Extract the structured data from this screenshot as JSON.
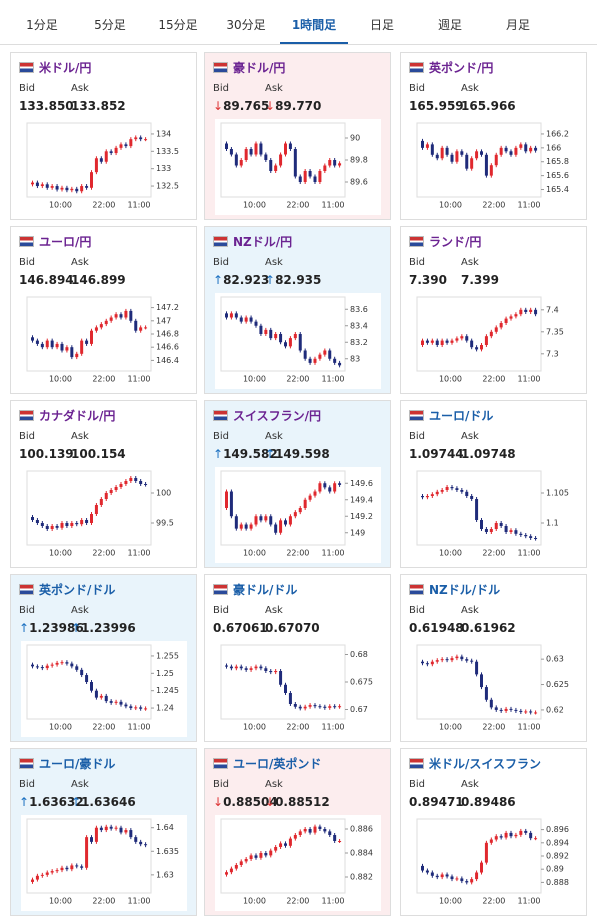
{
  "tabs": {
    "items": [
      "1分足",
      "5分足",
      "15分足",
      "30分足",
      "1時間足",
      "日足",
      "週足",
      "月足"
    ],
    "active": 4
  },
  "labels": {
    "bid": "Bid",
    "ask": "Ask"
  },
  "x_axis": [
    "10:00",
    "22:00",
    "11:00"
  ],
  "cards": [
    {
      "title": "米ドル/円",
      "title_color": "#6b2391",
      "dir": null,
      "bid": "133.850",
      "ask": "133.852",
      "ylim": [
        132.3,
        134.2
      ],
      "yticks": [
        132.5,
        133,
        133.5,
        134
      ],
      "closes": [
        132.55,
        132.6,
        132.5,
        132.55,
        132.45,
        132.5,
        132.4,
        132.45,
        132.38,
        132.42,
        132.35,
        132.5,
        132.45,
        132.9,
        133.3,
        133.2,
        133.5,
        133.45,
        133.6,
        133.7,
        133.65,
        133.85,
        133.9,
        133.85,
        133.85
      ]
    },
    {
      "title": "豪ドル/円",
      "title_color": "#6b2391",
      "dir": "down",
      "bid": "89.765",
      "ask": "89.770",
      "ylim": [
        89.5,
        90.1
      ],
      "yticks": [
        89.6,
        89.8,
        90
      ],
      "closes": [
        89.95,
        89.9,
        89.85,
        89.75,
        89.8,
        89.9,
        89.85,
        89.95,
        89.85,
        89.8,
        89.7,
        89.75,
        89.85,
        89.95,
        89.9,
        89.65,
        89.6,
        89.7,
        89.65,
        89.6,
        89.7,
        89.75,
        89.8,
        89.75,
        89.77
      ]
    },
    {
      "title": "英ポンド/円",
      "title_color": "#6b2391",
      "dir": null,
      "bid": "165.959",
      "ask": "165.966",
      "ylim": [
        165.35,
        166.3
      ],
      "yticks": [
        165.4,
        165.6,
        165.8,
        166,
        166.2
      ],
      "closes": [
        166.1,
        166.0,
        166.05,
        165.9,
        165.85,
        166.0,
        165.9,
        165.8,
        165.95,
        165.9,
        165.7,
        165.85,
        165.95,
        165.9,
        165.6,
        165.75,
        165.9,
        166.0,
        165.95,
        165.9,
        166.0,
        166.05,
        165.95,
        166.0,
        165.96
      ]
    },
    {
      "title": "ユーロ/円",
      "title_color": "#6b2391",
      "dir": null,
      "bid": "146.894",
      "ask": "146.899",
      "ylim": [
        146.3,
        147.3
      ],
      "yticks": [
        146.4,
        146.6,
        146.8,
        147,
        147.2
      ],
      "closes": [
        146.75,
        146.7,
        146.65,
        146.6,
        146.7,
        146.6,
        146.65,
        146.55,
        146.6,
        146.45,
        146.5,
        146.7,
        146.65,
        146.85,
        146.9,
        146.95,
        147.0,
        147.05,
        147.1,
        147.05,
        147.15,
        147.0,
        146.85,
        146.9,
        146.9
      ]
    },
    {
      "title": "NZドル/円",
      "title_color": "#6b2391",
      "dir": "up",
      "bid": "82.923",
      "ask": "82.935",
      "ylim": [
        82.9,
        83.7
      ],
      "yticks": [
        83,
        83.2,
        83.4,
        83.6
      ],
      "closes": [
        83.55,
        83.5,
        83.55,
        83.5,
        83.45,
        83.5,
        83.45,
        83.4,
        83.3,
        83.35,
        83.25,
        83.3,
        83.2,
        83.15,
        83.25,
        83.3,
        83.1,
        83.0,
        82.95,
        83.0,
        83.05,
        83.1,
        83.0,
        82.95,
        82.92
      ]
    },
    {
      "title": "ランド/円",
      "title_color": "#6b2391",
      "dir": null,
      "bid": "7.390",
      "ask": "7.399",
      "ylim": [
        7.27,
        7.42
      ],
      "yticks": [
        7.3,
        7.35,
        7.4
      ],
      "closes": [
        7.32,
        7.33,
        7.325,
        7.33,
        7.32,
        7.33,
        7.325,
        7.33,
        7.335,
        7.34,
        7.33,
        7.315,
        7.31,
        7.32,
        7.34,
        7.35,
        7.36,
        7.37,
        7.38,
        7.385,
        7.39,
        7.4,
        7.395,
        7.4,
        7.39
      ]
    },
    {
      "title": "カナダドル/円",
      "title_color": "#6b2391",
      "dir": null,
      "bid": "100.139",
      "ask": "100.154",
      "ylim": [
        99.2,
        100.3
      ],
      "yticks": [
        99.5,
        100
      ],
      "closes": [
        99.6,
        99.55,
        99.5,
        99.45,
        99.4,
        99.45,
        99.42,
        99.5,
        99.45,
        99.5,
        99.48,
        99.55,
        99.5,
        99.65,
        99.8,
        99.9,
        100.0,
        100.05,
        100.1,
        100.15,
        100.2,
        100.25,
        100.2,
        100.15,
        100.14
      ]
    },
    {
      "title": "スイスフラン/円",
      "title_color": "#6b2391",
      "dir": "up",
      "bid": "149.582",
      "ask": "149.598",
      "ylim": [
        148.9,
        149.7
      ],
      "yticks": [
        149,
        149.2,
        149.4,
        149.6
      ],
      "closes": [
        149.3,
        149.5,
        149.2,
        149.05,
        149.1,
        149.05,
        149.1,
        149.2,
        149.15,
        149.2,
        149.1,
        149.0,
        149.15,
        149.1,
        149.2,
        149.25,
        149.3,
        149.4,
        149.45,
        149.5,
        149.6,
        149.55,
        149.5,
        149.6,
        149.58
      ]
    },
    {
      "title": "ユーロ/ドル",
      "title_color": "#1a5ea8",
      "dir": null,
      "bid": "1.09744",
      "ask": "1.09748",
      "ylim": [
        1.097,
        1.108
      ],
      "yticks": [
        1.1,
        1.105
      ],
      "closes": [
        1.1045,
        1.1043,
        1.1045,
        1.1048,
        1.1052,
        1.1055,
        1.106,
        1.1058,
        1.1055,
        1.1052,
        1.1045,
        1.104,
        1.1005,
        1.099,
        1.0985,
        1.099,
        1.1,
        1.0995,
        1.0985,
        1.0988,
        1.0982,
        1.098,
        1.0978,
        1.0975,
        1.0974
      ]
    },
    {
      "title": "英ポンド/ドル",
      "title_color": "#1a5ea8",
      "dir": "up",
      "bid": "1.23986",
      "ask": "1.23996",
      "ylim": [
        1.238,
        1.257
      ],
      "yticks": [
        1.24,
        1.245,
        1.25,
        1.255
      ],
      "closes": [
        1.2525,
        1.252,
        1.2518,
        1.2515,
        1.2522,
        1.2525,
        1.253,
        1.2532,
        1.2528,
        1.252,
        1.251,
        1.2495,
        1.2475,
        1.245,
        1.243,
        1.2435,
        1.242,
        1.2415,
        1.2418,
        1.241,
        1.2405,
        1.24,
        1.2402,
        1.2398,
        1.2399
      ]
    },
    {
      "title": "豪ドル/ドル",
      "title_color": "#1a5ea8",
      "dir": null,
      "bid": "0.67061",
      "ask": "0.67070",
      "ylim": [
        0.669,
        0.681
      ],
      "yticks": [
        0.67,
        0.675,
        0.68
      ],
      "closes": [
        0.678,
        0.6778,
        0.6775,
        0.6778,
        0.6775,
        0.6772,
        0.6775,
        0.6778,
        0.6775,
        0.677,
        0.6768,
        0.677,
        0.6745,
        0.673,
        0.671,
        0.6705,
        0.6702,
        0.6705,
        0.6708,
        0.6706,
        0.6705,
        0.6703,
        0.6706,
        0.6705,
        0.6706
      ]
    },
    {
      "title": "NZドル/ドル",
      "title_color": "#1a5ea8",
      "dir": null,
      "bid": "0.61948",
      "ask": "0.61962",
      "ylim": [
        0.619,
        0.632
      ],
      "yticks": [
        0.62,
        0.625,
        0.63
      ],
      "closes": [
        0.6295,
        0.6292,
        0.629,
        0.6295,
        0.6298,
        0.63,
        0.6298,
        0.6302,
        0.6305,
        0.63,
        0.6297,
        0.6295,
        0.627,
        0.6245,
        0.622,
        0.6205,
        0.62,
        0.6198,
        0.6202,
        0.62,
        0.6198,
        0.6196,
        0.6197,
        0.6195,
        0.6195
      ]
    },
    {
      "title": "ユーロ/豪ドル",
      "title_color": "#1a5ea8",
      "dir": "up",
      "bid": "1.63632",
      "ask": "1.63646",
      "ylim": [
        1.627,
        1.641
      ],
      "yticks": [
        1.63,
        1.635,
        1.64
      ],
      "closes": [
        1.6285,
        1.629,
        1.6298,
        1.63,
        1.6305,
        1.6308,
        1.631,
        1.6315,
        1.6312,
        1.632,
        1.6318,
        1.6315,
        1.638,
        1.637,
        1.64,
        1.6395,
        1.6402,
        1.6398,
        1.64,
        1.639,
        1.6395,
        1.638,
        1.637,
        1.6365,
        1.6363
      ]
    },
    {
      "title": "ユーロ/英ポンド",
      "title_color": "#1a5ea8",
      "dir": "down",
      "bid": "0.88504",
      "ask": "0.88512",
      "ylim": [
        0.881,
        0.8865
      ],
      "yticks": [
        0.882,
        0.884,
        0.886
      ],
      "closes": [
        0.8822,
        0.8824,
        0.8827,
        0.883,
        0.8833,
        0.8835,
        0.8838,
        0.8836,
        0.884,
        0.8838,
        0.8842,
        0.8845,
        0.8848,
        0.8846,
        0.8852,
        0.8855,
        0.8858,
        0.886,
        0.8857,
        0.8862,
        0.886,
        0.8858,
        0.8855,
        0.885,
        0.885
      ]
    },
    {
      "title": "米ドル/スイスフラン",
      "title_color": "#1a5ea8",
      "dir": null,
      "bid": "0.89471",
      "ask": "0.89486",
      "ylim": [
        0.887,
        0.897
      ],
      "yticks": [
        0.888,
        0.89,
        0.892,
        0.894,
        0.896
      ],
      "closes": [
        0.8905,
        0.8898,
        0.8895,
        0.889,
        0.8888,
        0.8892,
        0.8889,
        0.8885,
        0.8886,
        0.8882,
        0.888,
        0.8885,
        0.8895,
        0.891,
        0.894,
        0.8945,
        0.895,
        0.8948,
        0.8955,
        0.895,
        0.8952,
        0.8958,
        0.8955,
        0.8947,
        0.8947
      ]
    }
  ]
}
